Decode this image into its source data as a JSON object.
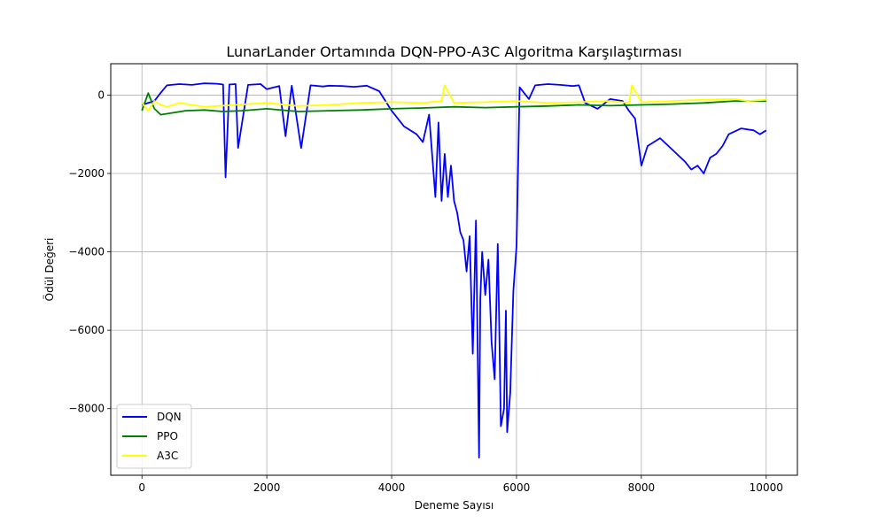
{
  "chart_data": {
    "type": "line",
    "title": "LunarLander Ortamında DQN-PPO-A3C Algoritma Karşılaştırması",
    "xlabel": "Deneme Sayısı",
    "ylabel": "Ödül Değeri",
    "xlim": [
      -500,
      10500
    ],
    "ylim": [
      -9700,
      800
    ],
    "xticks": [
      0,
      2000,
      4000,
      6000,
      8000,
      10000
    ],
    "xtick_labels": [
      "0",
      "2000",
      "4000",
      "6000",
      "8000",
      "10000"
    ],
    "yticks": [
      0,
      -2000,
      -4000,
      -6000,
      -8000
    ],
    "ytick_labels": [
      "0",
      "−2000",
      "−4000",
      "−6000",
      "−8000"
    ],
    "grid": true,
    "legend_position": "lower-left",
    "series": [
      {
        "name": "DQN",
        "color": "#0000ff",
        "x": [
          0,
          200,
          300,
          400,
          600,
          800,
          1000,
          1200,
          1300,
          1340,
          1400,
          1500,
          1540,
          1700,
          1900,
          2000,
          2200,
          2300,
          2400,
          2550,
          2700,
          2900,
          3000,
          3200,
          3400,
          3600,
          3800,
          4000,
          4200,
          4400,
          4500,
          4600,
          4700,
          4750,
          4800,
          4850,
          4900,
          4950,
          5000,
          5050,
          5100,
          5150,
          5200,
          5250,
          5300,
          5350,
          5400,
          5420,
          5450,
          5500,
          5550,
          5600,
          5650,
          5700,
          5720,
          5750,
          5800,
          5830,
          5850,
          5900,
          5950,
          6000,
          6050,
          6200,
          6300,
          6500,
          6700,
          6900,
          7000,
          7100,
          7300,
          7500,
          7700,
          7800,
          7900,
          8000,
          8100,
          8300,
          8500,
          8700,
          8800,
          8900,
          9000,
          9100,
          9200,
          9300,
          9400,
          9600,
          9800,
          9900,
          10000
        ],
        "y": [
          -250,
          -150,
          60,
          250,
          280,
          260,
          300,
          290,
          270,
          -2100,
          270,
          280,
          -1350,
          260,
          280,
          150,
          230,
          -1050,
          240,
          -1350,
          250,
          220,
          240,
          230,
          210,
          240,
          100,
          -400,
          -800,
          -1000,
          -1200,
          -500,
          -2600,
          -700,
          -2700,
          -1500,
          -2600,
          -1800,
          -2700,
          -3000,
          -3500,
          -3700,
          -4500,
          -3600,
          -6600,
          -3200,
          -9250,
          -5200,
          -4000,
          -5100,
          -4200,
          -6300,
          -7250,
          -3800,
          -5500,
          -8450,
          -8000,
          -5500,
          -8600,
          -7600,
          -5000,
          -3850,
          200,
          -100,
          250,
          280,
          260,
          230,
          250,
          -200,
          -350,
          -100,
          -150,
          -400,
          -600,
          -1800,
          -1300,
          -1100,
          -1400,
          -1700,
          -1900,
          -1800,
          -2000,
          -1600,
          -1500,
          -1300,
          -1000,
          -850,
          -900,
          -1000,
          -900
        ]
      },
      {
        "name": "PPO",
        "color": "#008000",
        "x": [
          0,
          100,
          200,
          300,
          500,
          700,
          1000,
          1300,
          1600,
          2000,
          2500,
          3000,
          3500,
          4000,
          4500,
          5000,
          5500,
          6000,
          6500,
          7000,
          7500,
          8000,
          8500,
          9000,
          9500,
          10000
        ],
        "y": [
          -400,
          50,
          -350,
          -500,
          -450,
          -400,
          -380,
          -420,
          -400,
          -350,
          -420,
          -400,
          -380,
          -350,
          -330,
          -300,
          -320,
          -300,
          -280,
          -250,
          -270,
          -250,
          -230,
          -200,
          -150,
          -150
        ]
      },
      {
        "name": "A3C",
        "color": "#ffff00",
        "x": [
          0,
          100,
          200,
          300,
          400,
          600,
          800,
          1000,
          1500,
          2000,
          2500,
          3000,
          3500,
          4000,
          4500,
          4800,
          4850,
          5000,
          5500,
          6000,
          6500,
          7000,
          7500,
          7800,
          7850,
          8000,
          8500,
          9000,
          9500,
          9700,
          10000
        ],
        "y": [
          -200,
          -400,
          -150,
          -250,
          -300,
          -200,
          -250,
          -300,
          -250,
          -200,
          -280,
          -250,
          -200,
          -180,
          -200,
          -150,
          250,
          -200,
          -180,
          -150,
          -200,
          -180,
          -150,
          -200,
          250,
          -180,
          -150,
          -120,
          -100,
          -150,
          -120
        ]
      }
    ]
  }
}
